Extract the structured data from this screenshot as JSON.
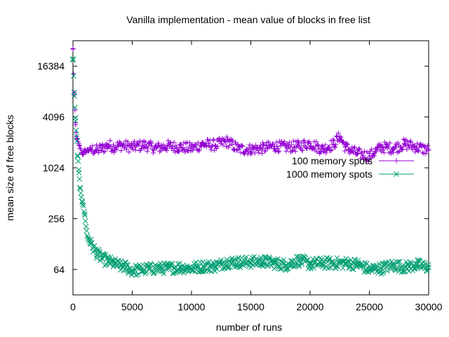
{
  "chart_data": {
    "type": "scatter",
    "title": "Vanilla implementation - mean value of blocks in free list",
    "xlabel": "number of runs",
    "ylabel": "mean size of free blocks",
    "xlim": [
      0,
      30000
    ],
    "ylim": [
      32,
      32768
    ],
    "yscale": "log2",
    "x_ticks": [
      0,
      5000,
      10000,
      15000,
      20000,
      25000,
      30000
    ],
    "x_tick_labels": [
      "0",
      "5000",
      "10000",
      "15000",
      "20000",
      "25000",
      "30000"
    ],
    "y_ticks": [
      64,
      256,
      1024,
      4096,
      16384
    ],
    "y_tick_labels": [
      "64",
      "256",
      "1024",
      "4096",
      "16384"
    ],
    "grid": false,
    "legend_position": "right, below top",
    "series": [
      {
        "name": "100 memory spots",
        "color": "#9400d3",
        "marker": "plus",
        "x": [
          0,
          100,
          200,
          300,
          500,
          800,
          1000,
          1500,
          2000,
          2500,
          3000,
          3500,
          4000,
          5000,
          6000,
          7000,
          8000,
          9000,
          10000,
          11000,
          12000,
          13000,
          14000,
          15000,
          16000,
          17000,
          18000,
          19000,
          20000,
          21000,
          22000,
          22500,
          23000,
          24000,
          25000,
          25500,
          26000,
          27000,
          28000,
          29000,
          30000
        ],
        "y": [
          26000,
          8000,
          3500,
          2400,
          1900,
          1500,
          1600,
          1700,
          1650,
          1750,
          1900,
          1800,
          1900,
          1800,
          1900,
          1750,
          1850,
          1800,
          1750,
          1950,
          1900,
          2100,
          1700,
          1700,
          1750,
          1850,
          1800,
          1850,
          2000,
          1700,
          1950,
          2400,
          1800,
          1500,
          1400,
          1600,
          1800,
          1750,
          1950,
          1800,
          1650
        ]
      },
      {
        "name": "1000 memory spots",
        "color": "#009e73",
        "marker": "cross",
        "x": [
          0,
          100,
          200,
          300,
          400,
          500,
          600,
          800,
          1000,
          1200,
          1500,
          2000,
          2500,
          3000,
          3500,
          4000,
          4500,
          5000,
          6000,
          7000,
          8000,
          9000,
          10000,
          11000,
          12000,
          13000,
          14000,
          15000,
          16000,
          17000,
          18000,
          19000,
          20000,
          21000,
          22000,
          23000,
          24000,
          25000,
          26000,
          27000,
          28000,
          29000,
          30000
        ],
        "y": [
          20000,
          8000,
          4000,
          2400,
          1400,
          900,
          600,
          400,
          280,
          160,
          130,
          100,
          85,
          80,
          75,
          70,
          68,
          62,
          64,
          66,
          66,
          68,
          66,
          70,
          70,
          78,
          78,
          78,
          80,
          76,
          72,
          82,
          74,
          76,
          76,
          76,
          74,
          64,
          66,
          72,
          68,
          72,
          68
        ]
      }
    ]
  }
}
